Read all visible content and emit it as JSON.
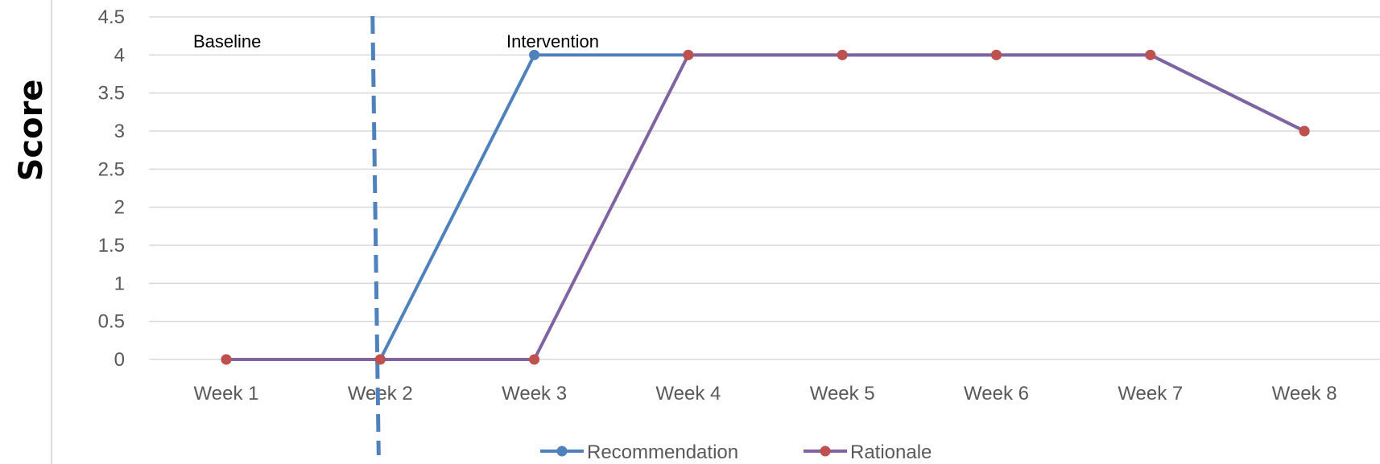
{
  "chart_data": {
    "type": "line",
    "title": "",
    "xlabel": "",
    "ylabel": "Score",
    "categories": [
      "Week 1",
      "Week 2",
      "Week 3",
      "Week 4",
      "Week 5",
      "Week 6",
      "Week 7",
      "Week 8"
    ],
    "ylim": [
      0,
      4.5
    ],
    "yticks": [
      0,
      0.5,
      1,
      1.5,
      2,
      2.5,
      3,
      3.5,
      4,
      4.5
    ],
    "ytick_labels": [
      "0",
      "0.5",
      "1",
      "1.5",
      "2",
      "2.5",
      "3",
      "3.5",
      "4",
      "4.5"
    ],
    "grid": true,
    "legend_position": "bottom",
    "series": [
      {
        "name": "Recommendation",
        "values": [
          0,
          0,
          4,
          4,
          4,
          4,
          4,
          3
        ],
        "color": "#4F81BD"
      },
      {
        "name": "Rationale",
        "values": [
          0,
          0,
          0,
          4,
          4,
          4,
          4,
          3
        ],
        "color": "#8064A2",
        "marker_color": "#C0504D"
      }
    ],
    "phase_change": {
      "between": [
        "Week 1",
        "Week 2"
      ],
      "line_style": "dashed",
      "color": "#4F81BD"
    },
    "annotations": {
      "baseline": "Baseline",
      "intervention": "Intervention"
    }
  }
}
